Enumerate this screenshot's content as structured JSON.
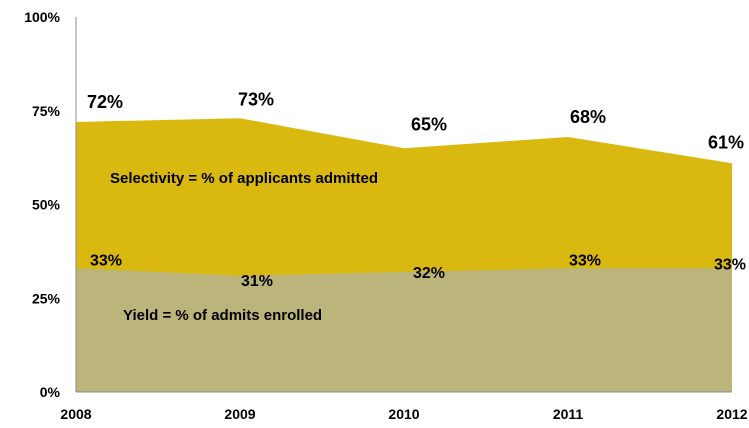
{
  "chart_data": {
    "type": "area",
    "x": [
      "2008",
      "2009",
      "2010",
      "2011",
      "2012"
    ],
    "series": [
      {
        "name": "Selectivity = % of applicants admitted",
        "values": [
          72,
          73,
          65,
          68,
          61
        ],
        "labels": [
          "72%",
          "73%",
          "65%",
          "68%",
          "61%"
        ],
        "color": "#d9b80f"
      },
      {
        "name": "Yield = % of  admits enrolled",
        "values": [
          33,
          31,
          32,
          33,
          33
        ],
        "labels": [
          "33%",
          "31%",
          "32%",
          "33%",
          "33%"
        ],
        "color": "#bcb57b"
      }
    ],
    "ylim": [
      0,
      100
    ],
    "yticks": [
      0,
      25,
      50,
      75,
      100
    ],
    "ytick_labels": [
      "0%",
      "25%",
      "50%",
      "75%",
      "100%"
    ],
    "grid": false,
    "legend": "none"
  }
}
